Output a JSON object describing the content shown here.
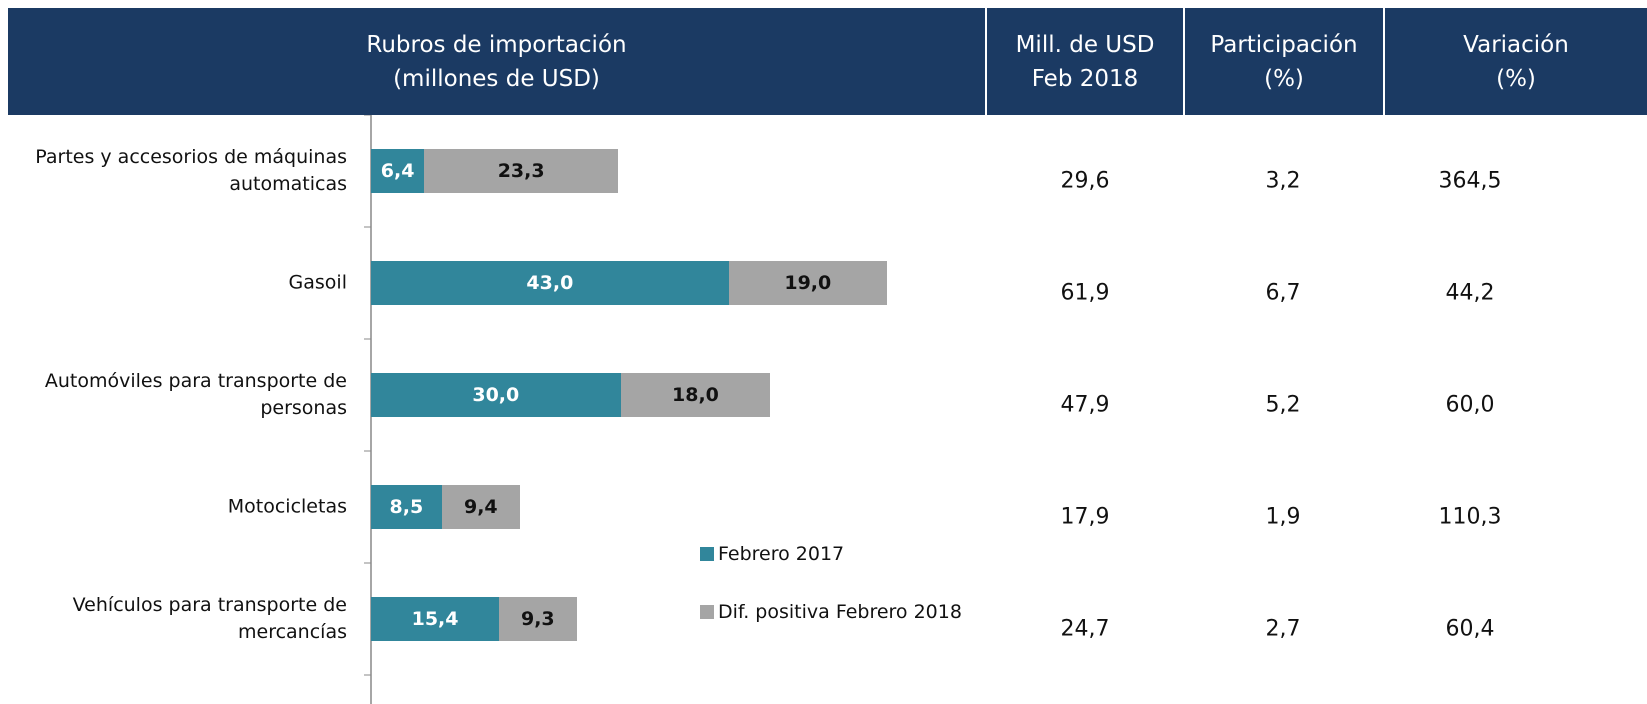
{
  "header": [
    [
      "Rubros de importación",
      "(millones de USD)"
    ],
    [
      "Mill. de USD",
      "Feb 2018"
    ],
    [
      "Participación",
      "(%)"
    ],
    [
      "Variación",
      "(%)"
    ]
  ],
  "chart_data": {
    "type": "bar",
    "orientation": "horizontal",
    "stacked": true,
    "categories": [
      "Partes y accesorios de máquinas automaticas",
      "Gasoil",
      "Automóviles para transporte de personas",
      "Motocicletas",
      "Vehículos para transporte de mercancías"
    ],
    "series": [
      {
        "name": "Febrero 2017",
        "color": "#31869b",
        "values": [
          6.4,
          43.0,
          30.0,
          8.5,
          15.4
        ],
        "value_labels": [
          "6,4",
          "43,0",
          "30,0",
          "8,5",
          "15,4"
        ]
      },
      {
        "name": "Dif. positiva Febrero 2018",
        "color": "#a5a5a5",
        "values": [
          23.3,
          19.0,
          18.0,
          9.4,
          9.3
        ],
        "value_labels": [
          "23,3",
          "19,0",
          "18,0",
          "9,4",
          "9,3"
        ]
      }
    ],
    "xlim": [
      0,
      100
    ],
    "legend": "bottom"
  },
  "table": {
    "rows": [
      [
        "29,6",
        "3,2",
        "364,5"
      ],
      [
        "61,9",
        "6,7",
        "44,2"
      ],
      [
        "47,9",
        "5,2",
        "60,0"
      ],
      [
        "17,9",
        "1,9",
        "110,3"
      ],
      [
        "24,7",
        "2,7",
        "60,4"
      ]
    ]
  }
}
